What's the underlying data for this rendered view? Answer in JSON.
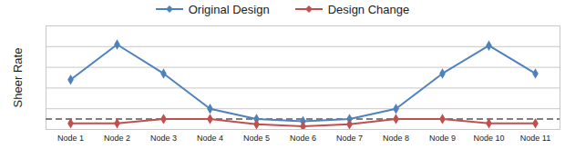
{
  "chart_data": {
    "type": "line",
    "categories": [
      "Node 1",
      "Node 2",
      "Node 3",
      "Node 4",
      "Node 5",
      "Node 6",
      "Node 7",
      "Node 8",
      "Node 9",
      "Node 10",
      "Node 11"
    ],
    "series": [
      {
        "name": "Original Design",
        "color": "#4f81bd",
        "marker": "diamond",
        "values": [
          2.4,
          4.1,
          2.7,
          1.0,
          0.5,
          0.4,
          0.5,
          1.0,
          2.7,
          4.05,
          2.7
        ]
      },
      {
        "name": "Design Change",
        "color": "#c0504d",
        "marker": "diamond",
        "values": [
          0.3,
          0.3,
          0.5,
          0.5,
          0.25,
          0.15,
          0.25,
          0.5,
          0.5,
          0.3,
          0.3
        ]
      }
    ],
    "threshold": 0.5,
    "y_label": "Sheer Rate",
    "ylim": [
      0,
      5
    ],
    "yticks": [
      0,
      1,
      2,
      3,
      4,
      5
    ],
    "grid": true,
    "legend": "top",
    "tick_labels": "x"
  }
}
